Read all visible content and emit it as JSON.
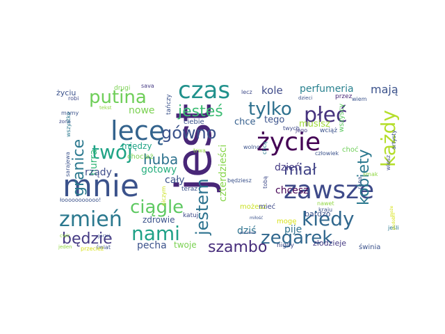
{
  "words": [
    {
      "text": "jest",
      "color": "#482677"
    },
    {
      "text": "mnie",
      "color": "#3b528b"
    },
    {
      "text": "zawsze",
      "color": "#3e4a89"
    },
    {
      "text": "czas",
      "color": "#21918c"
    },
    {
      "text": "lecę",
      "color": "#33638d"
    },
    {
      "text": "życie",
      "color": "#440154"
    },
    {
      "text": "płeć",
      "color": "#46337e"
    },
    {
      "text": "zmień",
      "color": "#2a788e"
    },
    {
      "text": "każdy",
      "color": "#b5de2b"
    },
    {
      "text": "kiedy",
      "color": "#31688e"
    },
    {
      "text": "putina",
      "color": "#6ece58"
    },
    {
      "text": "jesteś",
      "color": "#3dbc74"
    },
    {
      "text": "tylko",
      "color": "#2d708e"
    },
    {
      "text": "gówno",
      "color": "#3b528b"
    },
    {
      "text": "twój",
      "color": "#20a486"
    },
    {
      "text": "nami",
      "color": "#1fa187"
    },
    {
      "text": "ciągle",
      "color": "#5ec962"
    },
    {
      "text": "jestem",
      "color": "#2c728e"
    },
    {
      "text": "kobiety",
      "color": "#2a788e"
    },
    {
      "text": "zegarek",
      "color": "#31688e"
    },
    {
      "text": "będzie",
      "color": "#443a83"
    },
    {
      "text": "szambo",
      "color": "#472d7b"
    },
    {
      "text": "granice",
      "color": "#2a788e"
    },
    {
      "text": "huba",
      "color": "#2c728e"
    },
    {
      "text": "miał",
      "color": "#414487"
    },
    {
      "text": "hurra",
      "color": "#35b779"
    },
    {
      "text": "perfumeria",
      "color": "#27808e"
    },
    {
      "text": "mają",
      "color": "#3b528b"
    },
    {
      "text": "kole",
      "color": "#3e4a89"
    },
    {
      "text": "nowe",
      "color": "#7ad151"
    },
    {
      "text": "chce",
      "color": "#355f8d"
    },
    {
      "text": "tego",
      "color": "#3b528b"
    },
    {
      "text": "musisz",
      "color": "#a0da39"
    },
    {
      "text": "dzień",
      "color": "#443983"
    },
    {
      "text": "chcesz",
      "color": "#440154"
    },
    {
      "text": "między",
      "color": "#20a486"
    },
    {
      "text": "rządy",
      "color": "#3e4c8a"
    },
    {
      "text": "gotowy",
      "color": "#29af7f"
    },
    {
      "text": "cały",
      "color": "#3b528b"
    },
    {
      "text": "czterdzieści",
      "color": "#86d549"
    },
    {
      "text": "pije",
      "color": "#2d708e"
    },
    {
      "text": "dziś",
      "color": "#2c728e"
    },
    {
      "text": "pecha",
      "color": "#3b528b"
    },
    {
      "text": "twoje",
      "color": "#7ad151"
    },
    {
      "text": "zdrowie",
      "color": "#3b528b"
    },
    {
      "text": "możesz",
      "color": "#c8e020"
    },
    {
      "text": "mieć",
      "color": "#3e4a89"
    },
    {
      "text": "mogę",
      "color": "#d8e219"
    },
    {
      "text": "bardzo",
      "color": "#3b528b"
    },
    {
      "text": "wszyscy",
      "color": "#5ec962"
    },
    {
      "text": "choć",
      "color": "#6ece58"
    },
    {
      "text": "złodzieje",
      "color": "#443983"
    },
    {
      "text": "świnia",
      "color": "#3b528b"
    },
    {
      "text": "nigdy",
      "color": "#3e4a89"
    },
    {
      "text": "życiu",
      "color": "#3b528b"
    },
    {
      "text": "drugi",
      "color": "#7ad151"
    },
    {
      "text": "sava",
      "color": "#443983"
    },
    {
      "text": "tańczy",
      "color": "#3b528b"
    },
    {
      "text": "robi",
      "color": "#3e4a89"
    },
    {
      "text": "tekst",
      "color": "#90d743"
    },
    {
      "text": "mamy",
      "color": "#3b528b"
    },
    {
      "text": "żonę",
      "color": "#3e4a89"
    },
    {
      "text": "wszystko",
      "color": "#2a788e"
    },
    {
      "text": "sarajewa",
      "color": "#3b528b"
    },
    {
      "text": "chociaż",
      "color": "#7ad151"
    },
    {
      "text": "ciebie",
      "color": "#3b528b"
    },
    {
      "text": "lecz",
      "color": "#3e4a89"
    },
    {
      "text": "dzieci",
      "color": "#3b528b"
    },
    {
      "text": "przez",
      "color": "#482677"
    },
    {
      "text": "wiem",
      "color": "#3b528b"
    },
    {
      "text": "twych",
      "color": "#3e4a89"
    },
    {
      "text": "jego",
      "color": "#443983"
    },
    {
      "text": "wciąż",
      "color": "#3b528b"
    },
    {
      "text": "człowiek",
      "color": "#3b528b"
    },
    {
      "text": "wiesz",
      "color": "#3e4a89"
    },
    {
      "text": "artysty",
      "color": "#3b528b"
    },
    {
      "text": "smak",
      "color": "#90d743"
    },
    {
      "text": "rana",
      "color": "#3b528b"
    },
    {
      "text": "wolno",
      "color": "#3b528b"
    },
    {
      "text": "trwa",
      "color": "#90d743"
    },
    {
      "text": "teraz",
      "color": "#3b528b"
    },
    {
      "text": "katuj",
      "color": "#3e4a89"
    },
    {
      "text": "niczym",
      "color": "#c8e020"
    },
    {
      "text": "łooooooooooo!",
      "color": "#3b528b"
    },
    {
      "text": "tobą",
      "color": "#3e4a89"
    },
    {
      "text": "chcą",
      "color": "#2a788e"
    },
    {
      "text": "będziesz",
      "color": "#3b528b"
    },
    {
      "text": "nawet",
      "color": "#90d743"
    },
    {
      "text": "kraju",
      "color": "#3b528b"
    },
    {
      "text": "miłość",
      "color": "#3b528b"
    },
    {
      "text": "jeśli",
      "color": "#2a788e"
    },
    {
      "text": "może",
      "color": "#d8e219"
    },
    {
      "text": "podobni",
      "color": "#d8e219"
    },
    {
      "text": "cwir",
      "color": "#90d743"
    },
    {
      "text": "świat",
      "color": "#3b528b"
    },
    {
      "text": "przecież",
      "color": "#d8e219"
    },
    {
      "text": "jeden",
      "color": "#90d743"
    },
    {
      "text": "gorzej",
      "color": "#3b528b"
    },
    {
      "text": "ponieważ",
      "color": "#3b528b"
    }
  ]
}
